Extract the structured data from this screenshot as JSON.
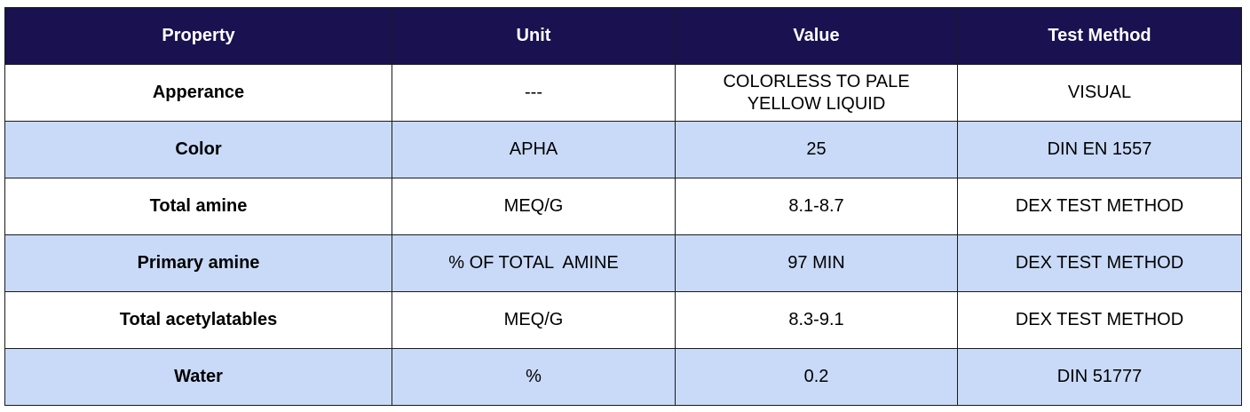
{
  "table": {
    "headers": [
      "Property",
      "Unit",
      "Value",
      "Test Method"
    ],
    "rows": [
      {
        "property": "Apperance",
        "unit": "---",
        "value": "COLORLESS TO PALE YELLOW LIQUID",
        "value_line1": "COLORLESS TO PALE",
        "value_line2": "YELLOW LIQUID",
        "method": "VISUAL"
      },
      {
        "property": "Color",
        "unit": "APHA",
        "value": "25",
        "method": "DIN EN 1557"
      },
      {
        "property": "Total amine",
        "unit": "MEQ/G",
        "value": "8.1-8.7",
        "method": "DEX TEST METHOD"
      },
      {
        "property": "Primary amine",
        "unit": "% OF TOTAL  AMINE",
        "value": "97 MIN",
        "method": "DEX TEST METHOD"
      },
      {
        "property": "Total acetylatables",
        "unit": "MEQ/G",
        "value": "8.3-9.1",
        "method": "DEX TEST METHOD"
      },
      {
        "property": "Water",
        "unit": "%",
        "value": "0.2",
        "method": "DIN 51777"
      }
    ]
  },
  "colors": {
    "header_bg": "#1a1151",
    "header_text": "#ffffff",
    "row_alt_bg": "#c9daf8",
    "row_bg": "#ffffff"
  }
}
